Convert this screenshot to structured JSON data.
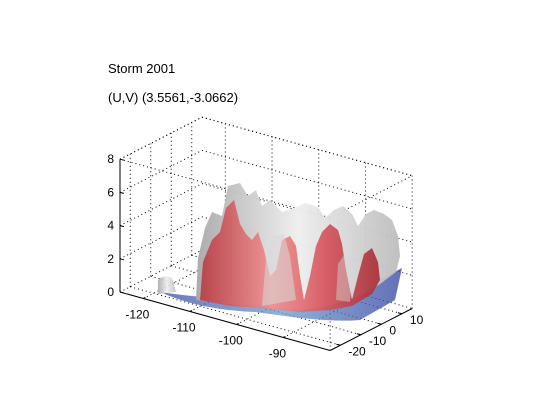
{
  "figure": {
    "title": "Storm 2001",
    "readout": "(U,V) (3.5561,-3.0662)"
  },
  "chart_data": {
    "type": "3d-isosurface",
    "title": "Storm 2001",
    "annotation": "(U,V) (3.5561,-3.0662)",
    "xlabel": "",
    "ylabel": "",
    "zlabel": "",
    "xlim": [
      -125,
      -80
    ],
    "ylim": [
      -25,
      15
    ],
    "zlim": [
      0,
      8
    ],
    "x_ticks": [
      -120,
      -110,
      -100,
      -90
    ],
    "y_ticks": [
      -20,
      -10,
      0,
      10
    ],
    "z_ticks": [
      0,
      2,
      4,
      6,
      8
    ],
    "grid": true,
    "box": "dotted",
    "series": [
      {
        "color": "#c9c9c9"
      },
      {
        "color": "#d9646a"
      }
    ]
  }
}
